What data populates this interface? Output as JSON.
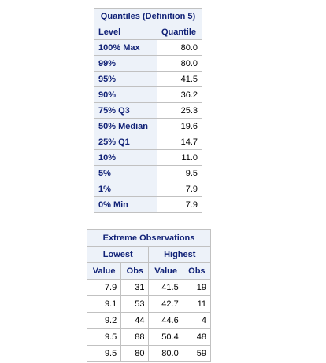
{
  "quantiles": {
    "title": "Quantiles (Definition 5)",
    "columns": [
      "Level",
      "Quantile"
    ],
    "rows": [
      {
        "level": "100% Max",
        "quantile": "80.0"
      },
      {
        "level": "99%",
        "quantile": "80.0"
      },
      {
        "level": "95%",
        "quantile": "41.5"
      },
      {
        "level": "90%",
        "quantile": "36.2"
      },
      {
        "level": "75% Q3",
        "quantile": "25.3"
      },
      {
        "level": "50% Median",
        "quantile": "19.6"
      },
      {
        "level": "25% Q1",
        "quantile": "14.7"
      },
      {
        "level": "10%",
        "quantile": "11.0"
      },
      {
        "level": "5%",
        "quantile": "9.5"
      },
      {
        "level": "1%",
        "quantile": "7.9"
      },
      {
        "level": "0% Min",
        "quantile": "7.9"
      }
    ]
  },
  "extremes": {
    "title": "Extreme Observations",
    "groups": [
      "Lowest",
      "Highest"
    ],
    "columns": [
      "Value",
      "Obs",
      "Value",
      "Obs"
    ],
    "rows": [
      {
        "low_value": "7.9",
        "low_obs": "31",
        "high_value": "41.5",
        "high_obs": "19"
      },
      {
        "low_value": "9.1",
        "low_obs": "53",
        "high_value": "42.7",
        "high_obs": "11"
      },
      {
        "low_value": "9.2",
        "low_obs": "44",
        "high_value": "44.6",
        "high_obs": "4"
      },
      {
        "low_value": "9.5",
        "low_obs": "88",
        "high_value": "50.4",
        "high_obs": "48"
      },
      {
        "low_value": "9.5",
        "low_obs": "80",
        "high_value": "80.0",
        "high_obs": "59"
      }
    ]
  }
}
